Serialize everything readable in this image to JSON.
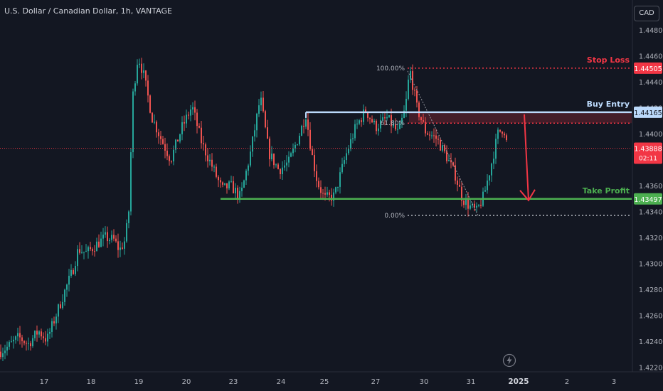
{
  "header": {
    "symbol_title": "U.S. Dollar / Canadian Dollar, 1h, VANTAGE",
    "currency": "CAD"
  },
  "colors": {
    "background": "#131722",
    "up": "#26a69a",
    "down": "#ef5350",
    "stop_loss": "#f23645",
    "buy_entry": "#bbd9fb",
    "take_profit": "#4caf50",
    "arrow": "#f23645",
    "text": "#d1d4dc",
    "grid_text": "#b2b5be"
  },
  "chart_data": {
    "type": "candlestick",
    "price_axis": {
      "ticks": [
        "1.44800",
        "1.44600",
        "1.44400",
        "1.44200",
        "1.44000",
        "1.43600",
        "1.43400",
        "1.43200",
        "1.43000",
        "1.42800",
        "1.42600",
        "1.42400",
        "1.42200"
      ],
      "ylim": [
        1.4215,
        1.449
      ]
    },
    "time_axis": {
      "labels": [
        "17",
        "18",
        "19",
        "20",
        "23",
        "24",
        "25",
        "27",
        "30",
        "31",
        "2025",
        "2",
        "3"
      ]
    },
    "levels": {
      "stop_loss": {
        "label": "Stop Loss",
        "price": 1.44505,
        "price_text": "1.44505"
      },
      "buy_entry": {
        "label": "Buy Entry",
        "price": 1.44165,
        "price_text": "1.44165"
      },
      "take_profit": {
        "label": "Take Profit",
        "price": 1.43497,
        "price_text": "1.43497"
      },
      "current": {
        "price": 1.43888,
        "price_text": "1.43888",
        "countdown": "02:11"
      }
    },
    "fibonacci": [
      {
        "label": "100.00%",
        "price": 1.44505
      },
      {
        "label": "61.80%",
        "price": 1.44081
      },
      {
        "label": "0.00%",
        "price": 1.4337
      }
    ],
    "path_anchors": [
      [
        0,
        1.4232
      ],
      [
        12,
        1.4236
      ],
      [
        26,
        1.4243
      ],
      [
        40,
        1.4238
      ],
      [
        54,
        1.4248
      ],
      [
        66,
        1.4241
      ],
      [
        80,
        1.4262
      ],
      [
        92,
        1.428
      ],
      [
        102,
        1.4294
      ],
      [
        110,
        1.4311
      ],
      [
        122,
        1.4308
      ],
      [
        134,
        1.4314
      ],
      [
        148,
        1.432
      ],
      [
        160,
        1.4318
      ],
      [
        168,
        1.431
      ],
      [
        176,
        1.4318
      ],
      [
        182,
        1.4345
      ],
      [
        186,
        1.4426
      ],
      [
        194,
        1.446
      ],
      [
        202,
        1.4445
      ],
      [
        214,
        1.4412
      ],
      [
        228,
        1.4394
      ],
      [
        240,
        1.438
      ],
      [
        256,
        1.4405
      ],
      [
        270,
        1.4421
      ],
      [
        284,
        1.4392
      ],
      [
        298,
        1.4375
      ],
      [
        312,
        1.4357
      ],
      [
        324,
        1.436
      ],
      [
        338,
        1.4351
      ],
      [
        352,
        1.4385
      ],
      [
        366,
        1.4428
      ],
      [
        378,
        1.4385
      ],
      [
        392,
        1.4372
      ],
      [
        406,
        1.4378
      ],
      [
        420,
        1.4398
      ],
      [
        430,
        1.4415
      ],
      [
        438,
        1.4385
      ],
      [
        446,
        1.4363
      ],
      [
        456,
        1.435
      ],
      [
        470,
        1.4352
      ],
      [
        486,
        1.4383
      ],
      [
        500,
        1.4405
      ],
      [
        514,
        1.4418
      ],
      [
        528,
        1.4405
      ],
      [
        544,
        1.4412
      ],
      [
        560,
        1.44
      ],
      [
        570,
        1.442
      ],
      [
        576,
        1.445
      ],
      [
        586,
        1.442
      ],
      [
        598,
        1.4402
      ],
      [
        614,
        1.4396
      ],
      [
        628,
        1.4382
      ],
      [
        640,
        1.4368
      ],
      [
        650,
        1.435
      ],
      [
        660,
        1.4344
      ],
      [
        670,
        1.434
      ],
      [
        680,
        1.4352
      ],
      [
        690,
        1.4375
      ],
      [
        700,
        1.44
      ],
      [
        708,
        1.4405
      ],
      [
        714,
        1.4388
      ]
    ],
    "projection": {
      "direction": "down",
      "from_level": "buy_entry",
      "to_level": "take_profit"
    }
  }
}
